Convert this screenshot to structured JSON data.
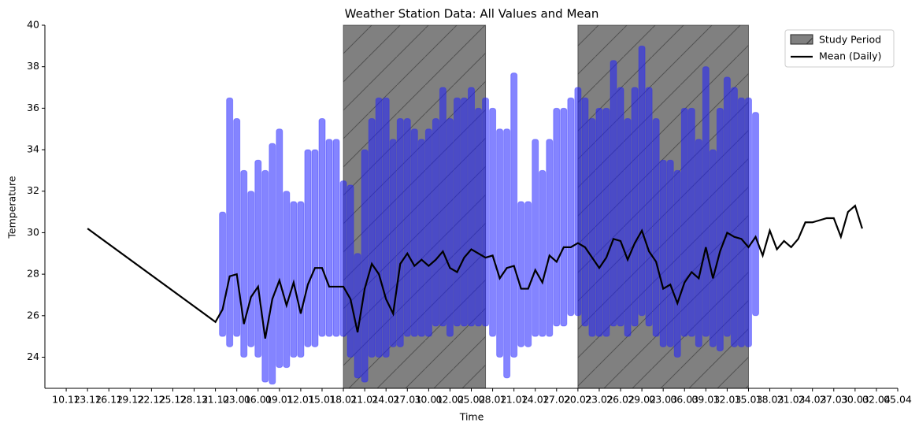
{
  "chart_data": {
    "type": "line",
    "title": "Weather Station Data: All Values and Mean",
    "x_label": "Time",
    "y_label": "Temperature",
    "xlim": [
      "07.12",
      "05.04"
    ],
    "xticks": [
      "10.12",
      "13.12",
      "16.12",
      "19.12",
      "22.12",
      "25.12",
      "28.12",
      "31.12",
      "03.01",
      "06.01",
      "09.01",
      "12.01",
      "15.01",
      "18.01",
      "21.01",
      "24.01",
      "27.01",
      "30.01",
      "02.02",
      "05.02",
      "08.02",
      "11.02",
      "14.02",
      "17.02",
      "20.02",
      "23.02",
      "26.02",
      "29.02",
      "03.03",
      "06.03",
      "09.03",
      "12.03",
      "15.03",
      "18.03",
      "21.03",
      "24.03",
      "27.03",
      "30.03",
      "02.04",
      "05.04"
    ],
    "ylim": [
      22.5,
      40
    ],
    "yticks": [
      24,
      26,
      28,
      30,
      32,
      34,
      36,
      38,
      40
    ],
    "legend": "upper right",
    "study_period": {
      "name": "Study Period",
      "color": "#808080",
      "hatch": "/",
      "ranges": [
        [
          "18.01",
          "07.02"
        ],
        [
          "20.02",
          "15.03"
        ]
      ]
    },
    "scatter": {
      "color": "#1f1fff",
      "x": [
        "01.01",
        "02.01",
        "03.01",
        "04.01",
        "05.01",
        "06.01",
        "07.01",
        "08.01",
        "09.01",
        "10.01",
        "11.01",
        "12.01",
        "13.01",
        "14.01",
        "15.01",
        "16.01",
        "17.01",
        "18.01",
        "19.01",
        "20.01",
        "21.01",
        "22.01",
        "23.01",
        "24.01",
        "25.01",
        "26.01",
        "27.01",
        "28.01",
        "29.01",
        "30.01",
        "31.01",
        "01.02",
        "02.02",
        "03.02",
        "04.02",
        "05.02",
        "06.02",
        "07.02",
        "08.02",
        "09.02",
        "10.02",
        "11.02",
        "12.02",
        "13.02",
        "14.02",
        "15.02",
        "16.02",
        "17.02",
        "18.02",
        "19.02",
        "20.02",
        "21.02",
        "22.02",
        "23.02",
        "24.02",
        "25.02",
        "26.02",
        "27.02",
        "28.02",
        "29.02",
        "01.03",
        "02.03",
        "03.03",
        "04.03",
        "05.03",
        "06.03",
        "07.03",
        "08.03",
        "09.03",
        "10.03",
        "11.03",
        "12.03",
        "13.03",
        "14.03",
        "15.03",
        "16.03"
      ],
      "low": [
        25,
        24.5,
        25,
        24,
        24.5,
        24,
        22.8,
        22.7,
        23.5,
        23.5,
        24,
        24,
        24.5,
        24.5,
        25,
        25,
        25,
        25,
        24,
        23,
        22.8,
        24,
        24,
        24,
        24.5,
        24.5,
        25,
        25,
        25,
        25,
        25.5,
        25.5,
        25,
        25.5,
        25.5,
        25.5,
        25.5,
        25.5,
        25,
        24,
        23,
        24,
        24.5,
        24.5,
        25,
        25,
        25,
        25.5,
        25.5,
        26,
        26,
        25.5,
        25,
        25,
        25,
        25.5,
        25.5,
        25,
        25.5,
        26,
        25.5,
        25,
        24.5,
        24.5,
        24,
        25,
        25,
        24.5,
        25,
        24.5,
        24.3,
        25,
        24.5,
        24.5,
        24.5,
        26
      ],
      "high": [
        31,
        36.5,
        35.5,
        33,
        32,
        33.5,
        33,
        34.3,
        35,
        32,
        31.5,
        31.5,
        34,
        34,
        35.5,
        34.5,
        34.5,
        32.5,
        32.3,
        29,
        34,
        35.5,
        36.5,
        36.5,
        34.5,
        35.5,
        35.5,
        35,
        34.5,
        35,
        35.5,
        37,
        35.5,
        36.5,
        36.5,
        37,
        36,
        36.5,
        36,
        35,
        35,
        37.7,
        31.5,
        31.5,
        34.5,
        33,
        34.5,
        36,
        36,
        36.5,
        37,
        36.5,
        35.5,
        36,
        36,
        38.3,
        37,
        35.5,
        37,
        39,
        37,
        35.5,
        33.5,
        33.5,
        33,
        36,
        36,
        34.5,
        38,
        34,
        36,
        37.5,
        37,
        36.5,
        36.5,
        35.8
      ]
    },
    "series": [
      {
        "name": "Mean (Daily)",
        "color": "#000000",
        "x": [
          "13.12",
          "31.12",
          "01.01",
          "02.01",
          "03.01",
          "04.01",
          "05.01",
          "06.01",
          "07.01",
          "08.01",
          "09.01",
          "10.01",
          "11.01",
          "12.01",
          "13.01",
          "14.01",
          "15.01",
          "16.01",
          "17.01",
          "18.01",
          "19.01",
          "20.01",
          "21.01",
          "22.01",
          "23.01",
          "24.01",
          "25.01",
          "26.01",
          "27.01",
          "28.01",
          "29.01",
          "30.01",
          "31.01",
          "01.02",
          "02.02",
          "03.02",
          "04.02",
          "05.02",
          "06.02",
          "07.02",
          "08.02",
          "09.02",
          "10.02",
          "11.02",
          "12.02",
          "13.02",
          "14.02",
          "15.02",
          "16.02",
          "17.02",
          "18.02",
          "19.02",
          "20.02",
          "21.02",
          "22.02",
          "23.02",
          "24.02",
          "25.02",
          "26.02",
          "27.02",
          "28.02",
          "29.02",
          "01.03",
          "02.03",
          "03.03",
          "04.03",
          "05.03",
          "06.03",
          "07.03",
          "08.03",
          "09.03",
          "10.03",
          "11.03",
          "12.03",
          "13.03",
          "14.03",
          "15.03",
          "16.03",
          "17.03",
          "18.03",
          "19.03",
          "20.03",
          "21.03",
          "22.03",
          "23.03",
          "24.03",
          "25.03",
          "26.03",
          "27.03",
          "28.03",
          "29.03",
          "30.03",
          "31.03"
        ],
        "values": [
          30.2,
          25.7,
          26.3,
          27.9,
          28.0,
          25.6,
          26.9,
          27.4,
          24.9,
          26.8,
          27.7,
          26.5,
          27.6,
          26.1,
          27.5,
          28.3,
          28.3,
          27.4,
          27.4,
          27.4,
          26.8,
          25.2,
          27.3,
          28.5,
          28.0,
          26.8,
          26.1,
          28.5,
          29.0,
          28.4,
          28.7,
          28.4,
          28.7,
          29.1,
          28.3,
          28.1,
          28.8,
          29.2,
          29.0,
          28.8,
          28.9,
          27.8,
          28.3,
          28.4,
          27.3,
          27.3,
          28.2,
          27.6,
          28.9,
          28.6,
          29.3,
          29.3,
          29.5,
          29.3,
          28.8,
          28.3,
          28.8,
          29.7,
          29.6,
          28.7,
          29.5,
          30.1,
          29.1,
          28.6,
          27.3,
          27.5,
          26.6,
          27.6,
          28.1,
          27.8,
          29.3,
          27.8,
          29.1,
          30.0,
          29.8,
          29.7,
          29.3,
          29.8,
          28.9,
          30.1,
          29.2,
          29.6,
          29.3,
          29.7,
          30.5,
          30.5,
          30.6,
          30.7,
          30.7,
          29.8,
          31.0,
          31.3,
          30.2
        ]
      }
    ]
  }
}
